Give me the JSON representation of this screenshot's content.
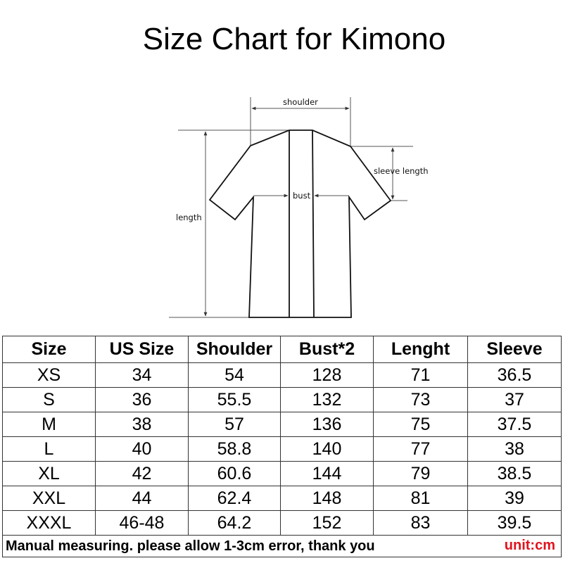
{
  "title": "Size Chart for Kimono",
  "diagram_labels": {
    "shoulder": "shoulder",
    "sleeve_length": "sleeve length",
    "bust": "bust",
    "length": "length"
  },
  "table": {
    "headers": [
      "Size",
      "US Size",
      "Shoulder",
      "Bust*2",
      "Lenght",
      "Sleeve"
    ],
    "rows": [
      [
        "XS",
        "34",
        "54",
        "128",
        "71",
        "36.5"
      ],
      [
        "S",
        "36",
        "55.5",
        "132",
        "73",
        "37"
      ],
      [
        "M",
        "38",
        "57",
        "136",
        "75",
        "37.5"
      ],
      [
        "L",
        "40",
        "58.8",
        "140",
        "77",
        "38"
      ],
      [
        "XL",
        "42",
        "60.6",
        "144",
        "79",
        "38.5"
      ],
      [
        "XXL",
        "44",
        "62.4",
        "148",
        "81",
        "39"
      ],
      [
        "XXXL",
        "46-48",
        "64.2",
        "152",
        "83",
        "39.5"
      ]
    ],
    "note": "Manual measuring. please allow 1-3cm error, thank you",
    "unit": "unit:cm"
  },
  "colors": {
    "unit": "#e0141e"
  }
}
